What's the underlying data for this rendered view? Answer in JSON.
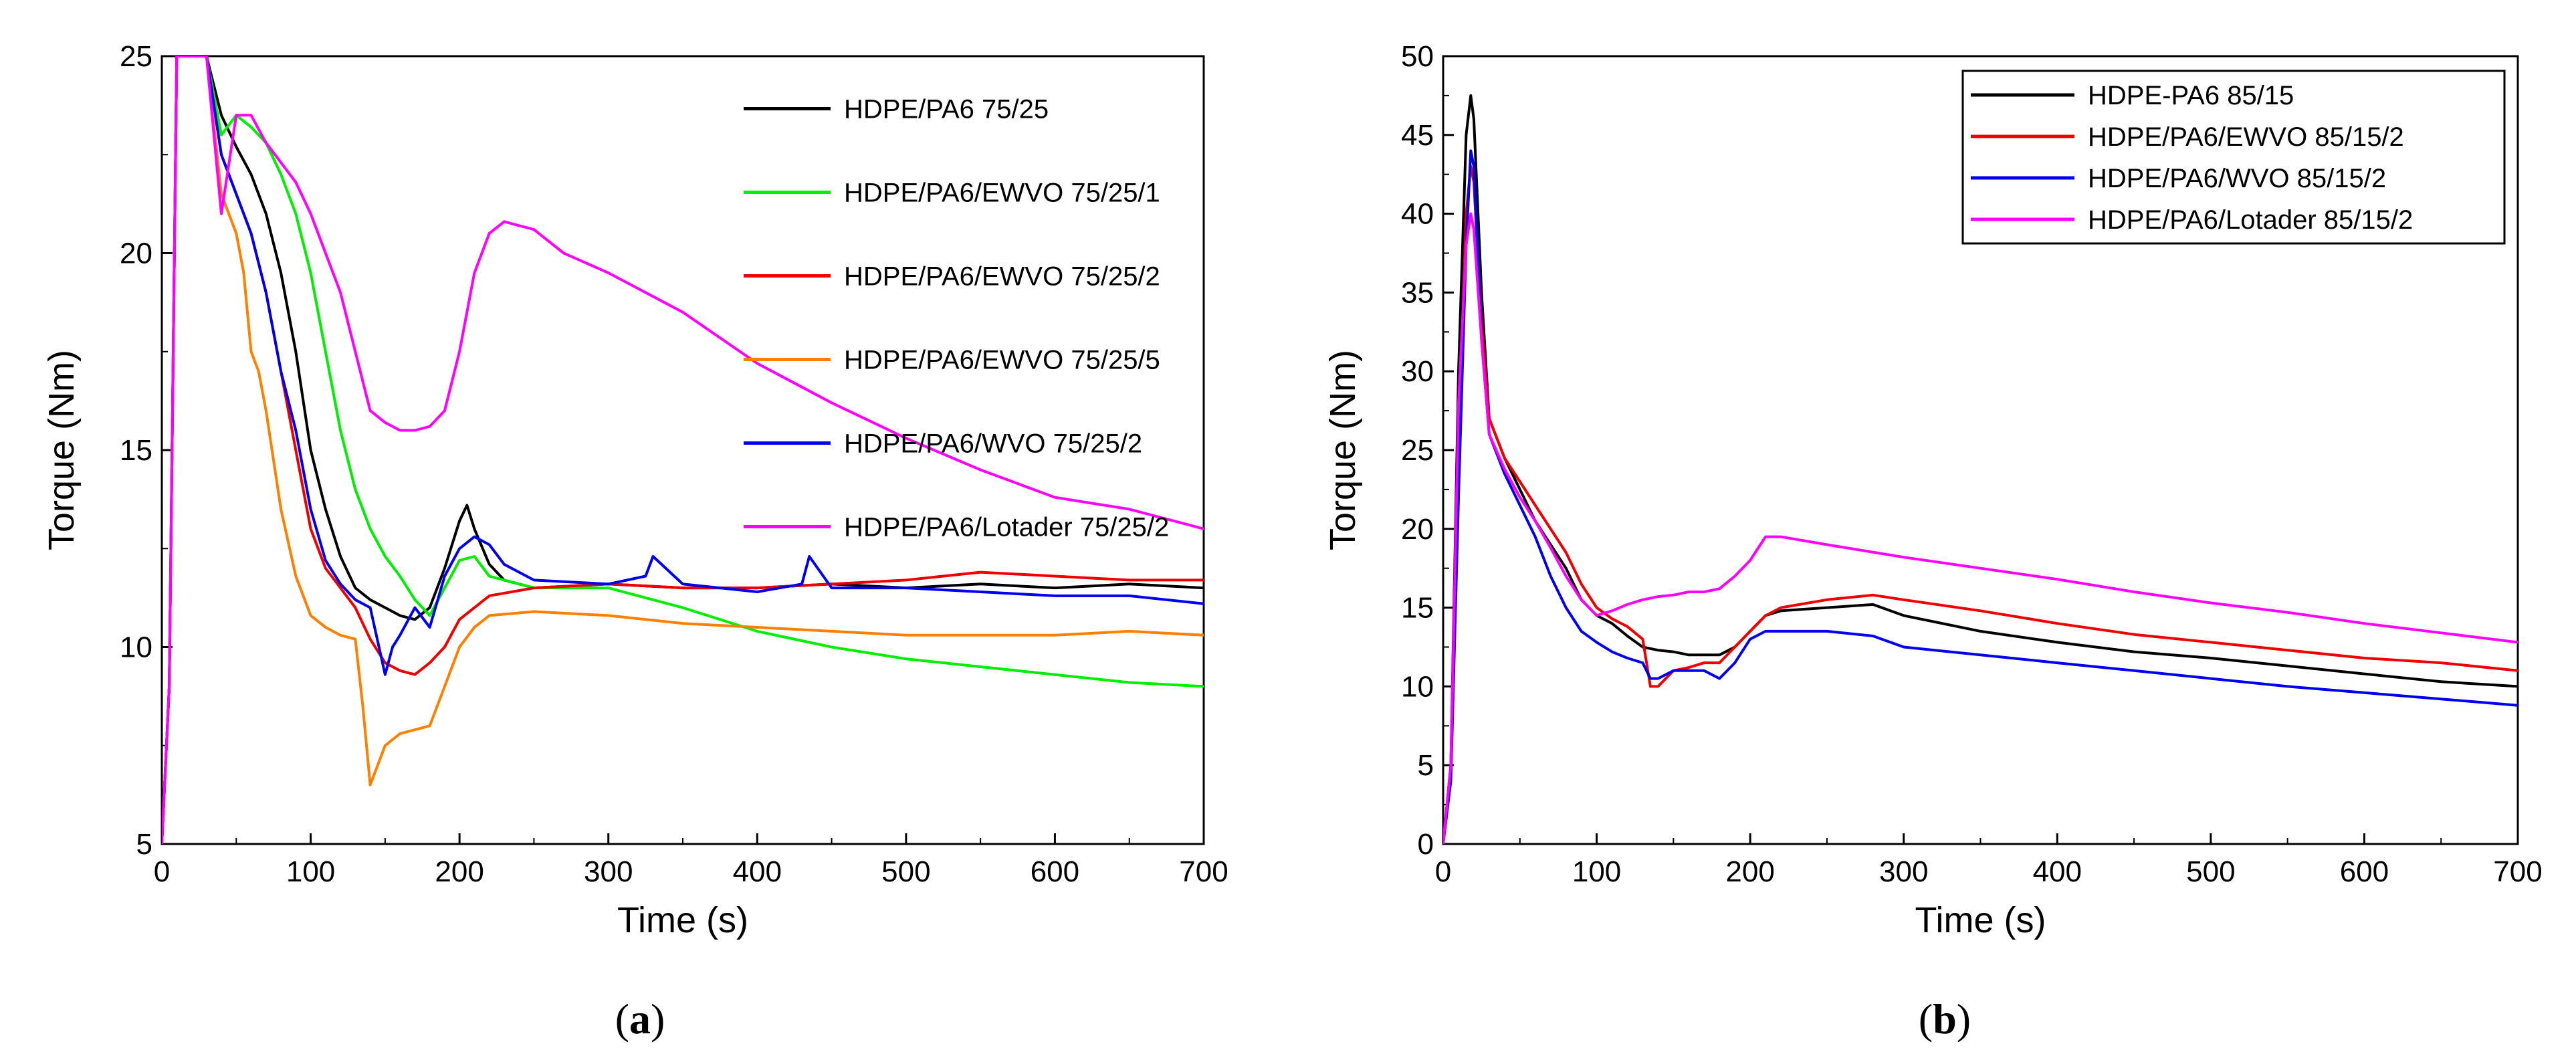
{
  "chart_data": [
    {
      "type": "line",
      "panel_label": "(a)",
      "panel_label_parts": {
        "open": "(",
        "letter": "a",
        "close": ")"
      },
      "xlabel": "Time (s)",
      "ylabel": "Torque (Nm)",
      "xlim": [
        0,
        700
      ],
      "ylim": [
        5,
        25
      ],
      "xticks": [
        0,
        100,
        200,
        300,
        400,
        500,
        600,
        700
      ],
      "yticks": [
        5,
        10,
        15,
        20,
        25
      ],
      "legend_position": "top-right",
      "series": [
        {
          "name": "HDPE/PA6 75/25",
          "color": "#000000",
          "x": [
            0,
            5,
            10,
            15,
            20,
            30,
            40,
            50,
            60,
            70,
            80,
            90,
            100,
            110,
            120,
            130,
            140,
            150,
            160,
            170,
            180,
            190,
            200,
            205,
            210,
            220,
            230,
            250,
            300,
            350,
            400,
            450,
            500,
            550,
            600,
            650,
            700
          ],
          "y": [
            5,
            9,
            25,
            25,
            25,
            25,
            23.5,
            22.7,
            22.0,
            21.0,
            19.5,
            17.5,
            15.0,
            13.5,
            12.3,
            11.5,
            11.2,
            11.0,
            10.8,
            10.7,
            11.0,
            12.0,
            13.2,
            13.6,
            13.0,
            12.1,
            11.7,
            11.5,
            11.6,
            11.5,
            11.5,
            11.6,
            11.5,
            11.6,
            11.5,
            11.6,
            11.5
          ]
        },
        {
          "name": "HDPE/PA6/EWVO 75/25/1",
          "color": "#00ee00",
          "x": [
            0,
            5,
            10,
            15,
            20,
            30,
            40,
            50,
            60,
            70,
            80,
            90,
            100,
            110,
            120,
            130,
            140,
            150,
            160,
            170,
            180,
            190,
            200,
            210,
            220,
            250,
            300,
            350,
            400,
            450,
            500,
            550,
            600,
            650,
            700
          ],
          "y": [
            5,
            9,
            25,
            25,
            25,
            25,
            23.0,
            23.5,
            23.2,
            22.8,
            22.0,
            21.0,
            19.5,
            17.5,
            15.5,
            14.0,
            13.0,
            12.3,
            11.8,
            11.2,
            10.8,
            11.5,
            12.2,
            12.3,
            11.8,
            11.5,
            11.5,
            11.0,
            10.4,
            10.0,
            9.7,
            9.5,
            9.3,
            9.1,
            9.0
          ]
        },
        {
          "name": "HDPE/PA6/EWVO 75/25/2",
          "color": "#ee0000",
          "x": [
            0,
            5,
            10,
            15,
            20,
            30,
            40,
            50,
            60,
            70,
            80,
            90,
            100,
            110,
            120,
            130,
            140,
            150,
            160,
            170,
            180,
            190,
            200,
            210,
            220,
            250,
            300,
            350,
            400,
            450,
            500,
            550,
            600,
            650,
            700
          ],
          "y": [
            5,
            9,
            25,
            25,
            25,
            25,
            22.5,
            21.5,
            20.5,
            19.0,
            17.0,
            15.0,
            13.0,
            12.0,
            11.5,
            11.0,
            10.2,
            9.6,
            9.4,
            9.3,
            9.6,
            10.0,
            10.7,
            11.0,
            11.3,
            11.5,
            11.6,
            11.5,
            11.5,
            11.6,
            11.7,
            11.9,
            11.8,
            11.7,
            11.7
          ]
        },
        {
          "name": "HDPE/PA6/EWVO 75/25/5",
          "color": "#ff8000",
          "x": [
            0,
            5,
            10,
            15,
            20,
            30,
            40,
            50,
            55,
            60,
            65,
            70,
            80,
            90,
            100,
            110,
            120,
            130,
            135,
            140,
            150,
            160,
            170,
            180,
            190,
            200,
            210,
            220,
            250,
            300,
            350,
            400,
            450,
            500,
            550,
            600,
            650,
            700
          ],
          "y": [
            5,
            9,
            25,
            25,
            25,
            25,
            21.5,
            20.5,
            19.5,
            17.5,
            17.0,
            16.0,
            13.5,
            11.8,
            10.8,
            10.5,
            10.3,
            10.2,
            8.5,
            6.5,
            7.5,
            7.8,
            7.9,
            8.0,
            9.0,
            10.0,
            10.5,
            10.8,
            10.9,
            10.8,
            10.6,
            10.5,
            10.4,
            10.3,
            10.3,
            10.3,
            10.4,
            10.3
          ]
        },
        {
          "name": "HDPE/PA6/WVO 75/25/2",
          "color": "#0000ee",
          "x": [
            0,
            5,
            10,
            15,
            20,
            30,
            40,
            50,
            60,
            70,
            80,
            90,
            100,
            110,
            120,
            130,
            140,
            150,
            155,
            160,
            170,
            180,
            190,
            200,
            210,
            220,
            230,
            250,
            300,
            325,
            330,
            350,
            400,
            430,
            435,
            450,
            500,
            550,
            600,
            650,
            700
          ],
          "y": [
            5,
            9,
            25,
            25,
            25,
            25,
            22.5,
            21.5,
            20.5,
            19.0,
            17.0,
            15.5,
            13.5,
            12.2,
            11.6,
            11.2,
            11.0,
            9.3,
            10.0,
            10.3,
            11.0,
            10.5,
            11.8,
            12.5,
            12.8,
            12.6,
            12.1,
            11.7,
            11.6,
            11.8,
            12.3,
            11.6,
            11.4,
            11.6,
            12.3,
            11.5,
            11.5,
            11.4,
            11.3,
            11.3,
            11.1
          ]
        },
        {
          "name": "HDPE/PA6/Lotader 75/25/2",
          "color": "#ff00ff",
          "x": [
            0,
            5,
            10,
            15,
            20,
            30,
            40,
            50,
            60,
            70,
            80,
            90,
            100,
            110,
            120,
            130,
            140,
            150,
            160,
            170,
            180,
            190,
            200,
            210,
            220,
            230,
            250,
            270,
            300,
            350,
            400,
            450,
            500,
            550,
            600,
            650,
            680,
            700
          ],
          "y": [
            5,
            9,
            25,
            25,
            25,
            25,
            21.0,
            23.5,
            23.5,
            22.8,
            22.3,
            21.8,
            21.0,
            20.0,
            19.0,
            17.5,
            16.0,
            15.7,
            15.5,
            15.5,
            15.6,
            16.0,
            17.5,
            19.5,
            20.5,
            20.8,
            20.6,
            20.0,
            19.5,
            18.5,
            17.2,
            16.2,
            15.3,
            14.5,
            13.8,
            13.5,
            13.2,
            13.0
          ]
        }
      ]
    },
    {
      "type": "line",
      "panel_label": "(b)",
      "panel_label_parts": {
        "open": "(",
        "letter": "b",
        "close": ")"
      },
      "xlabel": "Time (s)",
      "ylabel": "Torque (Nm)",
      "xlim": [
        0,
        700
      ],
      "ylim": [
        0,
        50
      ],
      "xticks": [
        0,
        100,
        200,
        300,
        400,
        500,
        600,
        700
      ],
      "yticks": [
        0,
        5,
        10,
        15,
        20,
        25,
        30,
        35,
        40,
        45,
        50
      ],
      "legend_position": "top-right",
      "series": [
        {
          "name": "HDPE-PA6 85/15",
          "color": "#000000",
          "x": [
            0,
            5,
            10,
            15,
            18,
            20,
            25,
            30,
            40,
            50,
            60,
            70,
            80,
            90,
            100,
            110,
            120,
            130,
            140,
            150,
            160,
            170,
            180,
            190,
            200,
            210,
            220,
            250,
            280,
            300,
            350,
            400,
            450,
            500,
            550,
            600,
            650,
            700
          ],
          "y": [
            0,
            5,
            30,
            45,
            47.5,
            46,
            35,
            27.0,
            24.5,
            22.5,
            20.5,
            19.0,
            17.5,
            15.5,
            14.5,
            14.0,
            13.2,
            12.5,
            12.3,
            12.2,
            12.0,
            12.0,
            12.0,
            12.5,
            13.5,
            14.5,
            14.8,
            15.0,
            15.2,
            14.5,
            13.5,
            12.8,
            12.2,
            11.8,
            11.3,
            10.8,
            10.3,
            10.0
          ]
        },
        {
          "name": "HDPE/PA6/EWVO 85/15/2",
          "color": "#ee0000",
          "x": [
            0,
            5,
            10,
            15,
            18,
            20,
            25,
            30,
            40,
            50,
            60,
            70,
            80,
            90,
            100,
            110,
            120,
            130,
            135,
            140,
            150,
            160,
            170,
            180,
            190,
            200,
            210,
            220,
            250,
            280,
            300,
            350,
            400,
            450,
            500,
            550,
            600,
            650,
            700
          ],
          "y": [
            0,
            5,
            25,
            40,
            43,
            42,
            33,
            27.0,
            24.5,
            23.0,
            21.5,
            20.0,
            18.5,
            16.5,
            15.0,
            14.3,
            13.8,
            13.0,
            10.0,
            10.0,
            11.0,
            11.2,
            11.5,
            11.5,
            12.5,
            13.5,
            14.5,
            15.0,
            15.5,
            15.8,
            15.5,
            14.8,
            14.0,
            13.3,
            12.8,
            12.3,
            11.8,
            11.5,
            11.0
          ]
        },
        {
          "name": "HDPE/PA6/WVO 85/15/2",
          "color": "#0000ee",
          "x": [
            0,
            5,
            10,
            15,
            18,
            20,
            25,
            30,
            40,
            50,
            60,
            70,
            80,
            90,
            100,
            110,
            120,
            130,
            135,
            140,
            150,
            160,
            170,
            180,
            190,
            200,
            210,
            220,
            250,
            280,
            300,
            350,
            400,
            450,
            500,
            550,
            600,
            650,
            700
          ],
          "y": [
            0,
            4,
            22,
            38,
            44,
            43,
            32,
            26.0,
            23.5,
            21.5,
            19.5,
            17.0,
            15.0,
            13.5,
            12.8,
            12.2,
            11.8,
            11.5,
            10.5,
            10.5,
            11.0,
            11.0,
            11.0,
            10.5,
            11.5,
            13.0,
            13.5,
            13.5,
            13.5,
            13.2,
            12.5,
            12.0,
            11.5,
            11.0,
            10.5,
            10.0,
            9.6,
            9.2,
            8.8
          ]
        },
        {
          "name": "HDPE/PA6/Lotader 85/15/2",
          "color": "#ff00ff",
          "x": [
            0,
            5,
            10,
            15,
            18,
            20,
            25,
            30,
            40,
            50,
            60,
            70,
            80,
            90,
            100,
            110,
            120,
            130,
            140,
            150,
            160,
            170,
            180,
            190,
            200,
            210,
            220,
            250,
            300,
            350,
            400,
            450,
            500,
            550,
            600,
            650,
            700
          ],
          "y": [
            0,
            5,
            28,
            38,
            40,
            39,
            32,
            26.0,
            23.8,
            22.0,
            20.5,
            18.8,
            17.0,
            15.5,
            14.5,
            14.8,
            15.2,
            15.5,
            15.7,
            15.8,
            16.0,
            16.0,
            16.2,
            17.0,
            18.0,
            19.5,
            19.5,
            19.0,
            18.2,
            17.5,
            16.8,
            16.0,
            15.3,
            14.7,
            14.0,
            13.4,
            12.8
          ]
        }
      ]
    }
  ]
}
